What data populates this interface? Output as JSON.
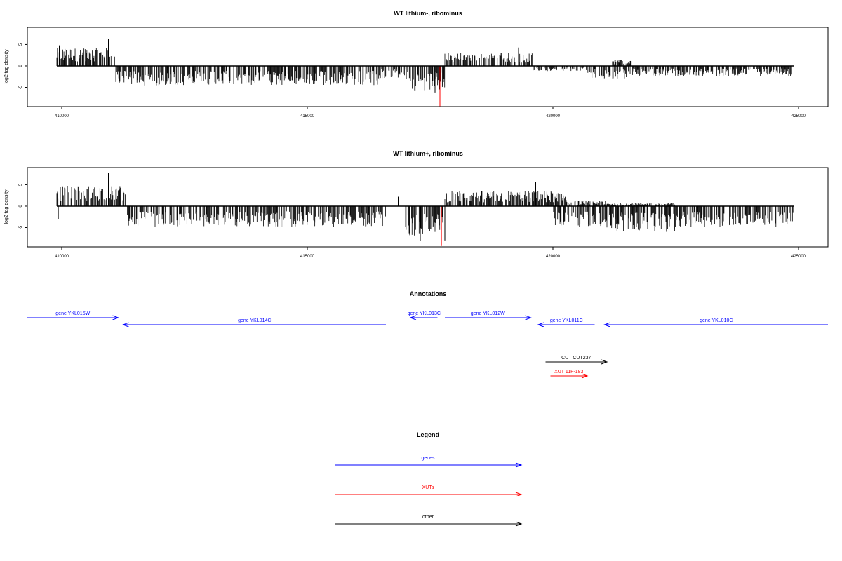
{
  "chart_data": [
    {
      "type": "bar",
      "title": "WT lithium-, ribominus",
      "ylabel": "log2 tag density",
      "xlim": [
        409300,
        425600
      ],
      "ylim": [
        -9.5,
        9
      ],
      "x_ticks": [
        410000,
        415000,
        420000,
        425000
      ],
      "x_tick_labels": [
        "410000",
        "415000",
        "420000",
        "425000"
      ],
      "y_ticks": [
        -5,
        0,
        5
      ],
      "y_tick_labels": [
        "-5",
        "0",
        "5"
      ],
      "x_range": [
        409900,
        424900
      ],
      "segments_pos": [
        [
          409900,
          411100,
          3.5
        ],
        [
          417800,
          419600,
          2.5
        ],
        [
          421200,
          421600,
          1.2
        ]
      ],
      "segments_neg": [
        [
          411100,
          416500,
          -3.8
        ],
        [
          416500,
          417100,
          -2.5
        ],
        [
          417100,
          417800,
          -5.0
        ],
        [
          419600,
          420700,
          -1.0
        ],
        [
          420700,
          421500,
          -2.5
        ],
        [
          421500,
          424900,
          -2.0
        ]
      ],
      "peaks": [
        [
          409950,
          4.8
        ],
        [
          410950,
          6.3
        ],
        [
          419300,
          4.3
        ],
        [
          421450,
          2.8
        ],
        [
          417150,
          -6.5
        ],
        [
          417600,
          -6.2
        ]
      ],
      "highlight": [
        [
          417150,
          -9.2
        ],
        [
          417700,
          -9.4
        ]
      ],
      "colors": {
        "bars": "#000000",
        "highlight": "#ff0000"
      }
    },
    {
      "type": "bar",
      "title": "WT lithium+, ribominus",
      "ylabel": "log2 tag density",
      "xlim": [
        409300,
        425600
      ],
      "ylim": [
        -9.5,
        9
      ],
      "x_ticks": [
        410000,
        415000,
        420000,
        425000
      ],
      "x_tick_labels": [
        "410000",
        "415000",
        "420000",
        "425000"
      ],
      "y_ticks": [
        -5,
        0,
        5
      ],
      "y_tick_labels": [
        "-5",
        "0",
        "5"
      ],
      "x_range": [
        409900,
        424900
      ],
      "segments_pos": [
        [
          409900,
          411300,
          4.0
        ],
        [
          417800,
          420300,
          3.0
        ],
        [
          420300,
          421100,
          1.0
        ],
        [
          421100,
          422500,
          0.6
        ]
      ],
      "segments_neg": [
        [
          411300,
          416600,
          -4.0
        ],
        [
          417000,
          417800,
          -6.0
        ],
        [
          420000,
          421100,
          -4.0
        ],
        [
          421100,
          422500,
          -5.0
        ],
        [
          422500,
          424900,
          -4.2
        ]
      ],
      "peaks": [
        [
          410950,
          7.8
        ],
        [
          416850,
          2.2
        ],
        [
          419650,
          5.7
        ],
        [
          409930,
          -3.0
        ],
        [
          417300,
          -8.2
        ],
        [
          417800,
          -8.0
        ]
      ],
      "highlight": [
        [
          417150,
          -9.0
        ],
        [
          417730,
          -9.3
        ]
      ],
      "colors": {
        "bars": "#000000",
        "highlight": "#ff0000"
      }
    }
  ],
  "annotations": {
    "title": "Annotations",
    "features": [
      {
        "label": "gene YKL015W",
        "category": "genes",
        "strand": "+",
        "start": 409300,
        "end": 411150
      },
      {
        "label": "gene YKL014C",
        "category": "genes",
        "strand": "-",
        "start": 411250,
        "end": 416600
      },
      {
        "label": "gene YKL013C",
        "category": "genes",
        "strand": "-",
        "start": 417100,
        "end": 417650
      },
      {
        "label": "gene YKL012W",
        "category": "genes",
        "strand": "+",
        "start": 417800,
        "end": 419550
      },
      {
        "label": "gene YKL011C",
        "category": "genes",
        "strand": "-",
        "start": 419700,
        "end": 420850
      },
      {
        "label": "gene YKL010C",
        "category": "genes",
        "strand": "-",
        "start": 421050,
        "end": 425600
      },
      {
        "label": "CUT CUT237",
        "category": "other",
        "strand": "+",
        "start": 419850,
        "end": 421100
      },
      {
        "label": "XUT 11F-183",
        "category": "XUTs",
        "strand": "+",
        "start": 419950,
        "end": 420700
      }
    ]
  },
  "legend": {
    "title": "Legend",
    "items": [
      {
        "label": "genes",
        "color": "#0000ff"
      },
      {
        "label": "XUTs",
        "color": "#ff0000"
      },
      {
        "label": "other",
        "color": "#000000"
      }
    ]
  }
}
